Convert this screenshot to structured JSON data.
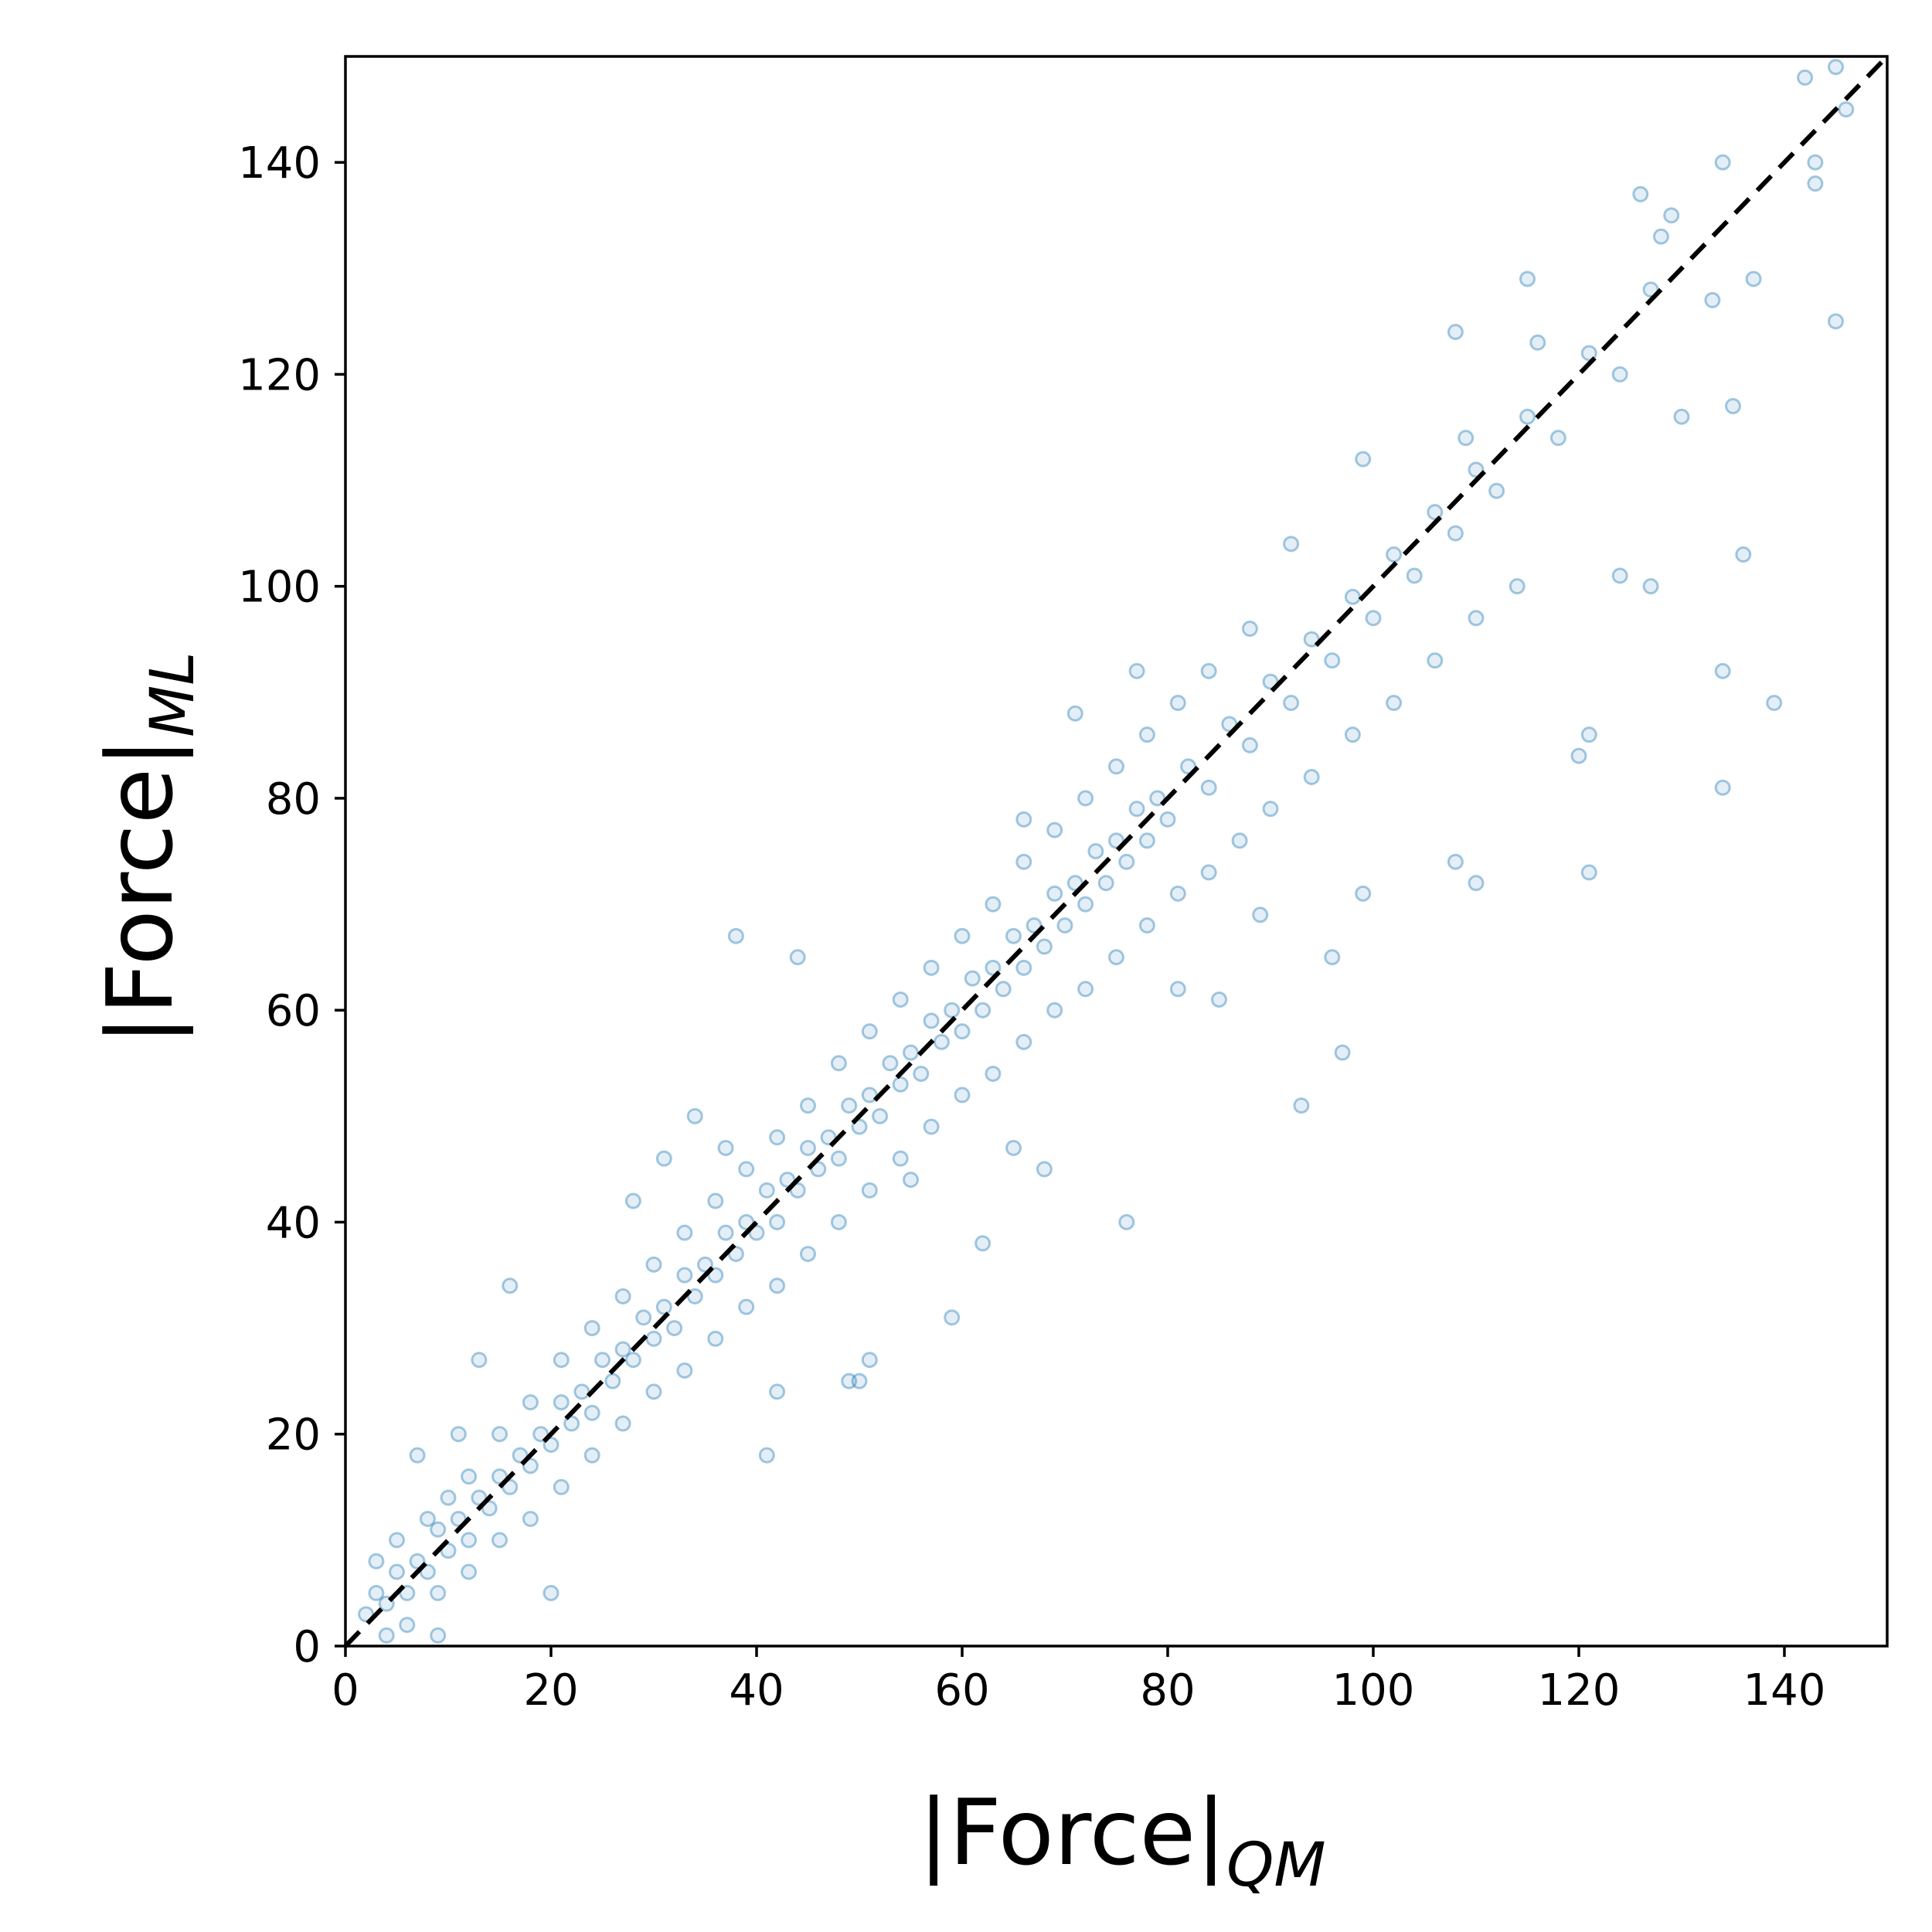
{
  "chart_data": {
    "type": "scatter",
    "title": "",
    "xlabel": {
      "main": "|Force|",
      "subscript": "QM"
    },
    "ylabel": {
      "main": "|Force|",
      "subscript": "ML"
    },
    "xlim": [
      0,
      150
    ],
    "ylim": [
      0,
      150
    ],
    "xticks": [
      0,
      20,
      40,
      60,
      80,
      100,
      120,
      140
    ],
    "yticks": [
      0,
      20,
      40,
      60,
      80,
      100,
      120,
      140
    ],
    "grid": false,
    "legend": "none",
    "marker": {
      "shape": "hollow-circle",
      "color": "#1f77b4",
      "alpha": 0.15
    },
    "reference_line": {
      "style": "dashed",
      "color": "#000000",
      "from": [
        0,
        0
      ],
      "to": [
        150,
        150
      ]
    },
    "series": [
      {
        "points": [
          [
            2,
            3
          ],
          [
            3,
            5
          ],
          [
            4,
            4
          ],
          [
            5,
            7
          ],
          [
            6,
            5
          ],
          [
            7,
            8
          ],
          [
            8,
            7
          ],
          [
            9,
            11
          ],
          [
            10,
            9
          ],
          [
            11,
            12
          ],
          [
            12,
            10
          ],
          [
            13,
            14
          ],
          [
            14,
            13
          ],
          [
            15,
            16
          ],
          [
            16,
            15
          ],
          [
            17,
            18
          ],
          [
            18,
            17
          ],
          [
            19,
            20
          ],
          [
            20,
            19
          ],
          [
            21,
            23
          ],
          [
            22,
            21
          ],
          [
            23,
            24
          ],
          [
            24,
            22
          ],
          [
            25,
            27
          ],
          [
            26,
            25
          ],
          [
            27,
            28
          ],
          [
            28,
            27
          ],
          [
            29,
            31
          ],
          [
            30,
            29
          ],
          [
            31,
            32
          ],
          [
            32,
            30
          ],
          [
            33,
            35
          ],
          [
            34,
            33
          ],
          [
            35,
            36
          ],
          [
            36,
            35
          ],
          [
            37,
            39
          ],
          [
            38,
            37
          ],
          [
            39,
            40
          ],
          [
            40,
            39
          ],
          [
            41,
            43
          ],
          [
            42,
            40
          ],
          [
            43,
            44
          ],
          [
            44,
            43
          ],
          [
            45,
            47
          ],
          [
            46,
            45
          ],
          [
            47,
            48
          ],
          [
            48,
            46
          ],
          [
            49,
            51
          ],
          [
            50,
            49
          ],
          [
            51,
            52
          ],
          [
            52,
            50
          ],
          [
            53,
            55
          ],
          [
            54,
            53
          ],
          [
            55,
            56
          ],
          [
            56,
            54
          ],
          [
            57,
            59
          ],
          [
            58,
            57
          ],
          [
            59,
            60
          ],
          [
            60,
            58
          ],
          [
            61,
            63
          ],
          [
            62,
            60
          ],
          [
            63,
            64
          ],
          [
            64,
            62
          ],
          [
            65,
            67
          ],
          [
            66,
            64
          ],
          [
            67,
            68
          ],
          [
            68,
            66
          ],
          [
            69,
            71
          ],
          [
            70,
            68
          ],
          [
            71,
            72
          ],
          [
            72,
            70
          ],
          [
            73,
            75
          ],
          [
            74,
            72
          ],
          [
            75,
            76
          ],
          [
            76,
            74
          ],
          [
            77,
            79
          ],
          [
            78,
            76
          ],
          [
            79,
            80
          ],
          [
            80,
            78
          ],
          [
            82,
            83
          ],
          [
            84,
            81
          ],
          [
            86,
            87
          ],
          [
            88,
            85
          ],
          [
            90,
            91
          ],
          [
            92,
            89
          ],
          [
            94,
            95
          ],
          [
            96,
            93
          ],
          [
            98,
            99
          ],
          [
            100,
            97
          ],
          [
            102,
            103
          ],
          [
            104,
            101
          ],
          [
            106,
            107
          ],
          [
            108,
            105
          ],
          [
            110,
            111
          ],
          [
            112,
            109
          ],
          [
            115,
            116
          ],
          [
            118,
            114
          ],
          [
            121,
            122
          ],
          [
            124,
            120
          ],
          [
            127,
            128
          ],
          [
            3,
            8
          ],
          [
            5,
            10
          ],
          [
            8,
            12
          ],
          [
            10,
            14
          ],
          [
            12,
            16
          ],
          [
            15,
            20
          ],
          [
            18,
            23
          ],
          [
            21,
            27
          ],
          [
            24,
            30
          ],
          [
            27,
            33
          ],
          [
            30,
            36
          ],
          [
            33,
            39
          ],
          [
            36,
            42
          ],
          [
            39,
            45
          ],
          [
            42,
            48
          ],
          [
            45,
            51
          ],
          [
            48,
            55
          ],
          [
            51,
            58
          ],
          [
            54,
            61
          ],
          [
            57,
            64
          ],
          [
            60,
            67
          ],
          [
            63,
            70
          ],
          [
            66,
            74
          ],
          [
            69,
            77
          ],
          [
            72,
            80
          ],
          [
            75,
            83
          ],
          [
            78,
            86
          ],
          [
            81,
            89
          ],
          [
            84,
            92
          ],
          [
            88,
            96
          ],
          [
            6,
            2
          ],
          [
            9,
            5
          ],
          [
            12,
            7
          ],
          [
            15,
            10
          ],
          [
            18,
            12
          ],
          [
            21,
            15
          ],
          [
            24,
            18
          ],
          [
            27,
            21
          ],
          [
            30,
            24
          ],
          [
            33,
            26
          ],
          [
            36,
            29
          ],
          [
            39,
            32
          ],
          [
            42,
            34
          ],
          [
            45,
            37
          ],
          [
            48,
            40
          ],
          [
            51,
            43
          ],
          [
            54,
            46
          ],
          [
            57,
            49
          ],
          [
            60,
            52
          ],
          [
            63,
            54
          ],
          [
            66,
            57
          ],
          [
            69,
            60
          ],
          [
            72,
            62
          ],
          [
            75,
            65
          ],
          [
            78,
            68
          ],
          [
            81,
            71
          ],
          [
            84,
            73
          ],
          [
            87,
            76
          ],
          [
            90,
            79
          ],
          [
            94,
            82
          ],
          [
            98,
            86
          ],
          [
            102,
            89
          ],
          [
            106,
            93
          ],
          [
            110,
            97
          ],
          [
            114,
            100
          ],
          [
            44,
            65
          ],
          [
            38,
            67
          ],
          [
            76,
            40
          ],
          [
            55,
            44
          ],
          [
            66,
            78
          ],
          [
            93,
            51
          ],
          [
            97,
            56
          ],
          [
            110,
            72
          ],
          [
            121,
            73
          ],
          [
            108,
            74
          ],
          [
            134,
            81
          ],
          [
            139,
            89
          ],
          [
            134,
            92
          ],
          [
            121,
            86
          ],
          [
            120,
            84
          ],
          [
            124,
            101
          ],
          [
            127,
            100
          ],
          [
            136,
            103
          ],
          [
            130,
            116
          ],
          [
            135,
            117
          ],
          [
            145,
            125
          ],
          [
            137,
            129
          ],
          [
            133,
            127
          ],
          [
            143,
            138
          ],
          [
            145,
            149
          ],
          [
            142,
            148
          ],
          [
            146,
            145
          ],
          [
            134,
            140
          ],
          [
            143,
            140
          ],
          [
            129,
            135
          ],
          [
            126,
            137
          ],
          [
            128,
            133
          ],
          [
            115,
            129
          ],
          [
            108,
            124
          ],
          [
            116,
            123
          ],
          [
            28,
            42
          ],
          [
            31,
            46
          ],
          [
            34,
            50
          ],
          [
            37,
            47
          ],
          [
            41,
            18
          ],
          [
            59,
            31
          ],
          [
            51,
            27
          ],
          [
            50,
            25
          ],
          [
            49,
            25
          ],
          [
            68,
            45
          ],
          [
            16,
            34
          ],
          [
            13,
            27
          ],
          [
            11,
            20
          ],
          [
            7,
            18
          ],
          [
            9,
            1
          ],
          [
            4,
            1
          ],
          [
            20,
            5
          ],
          [
            42,
            24
          ],
          [
            65,
            47
          ],
          [
            62,
            38
          ],
          [
            85,
            61
          ],
          [
            81,
            62
          ],
          [
            89,
            69
          ],
          [
            96,
            65
          ],
          [
            99,
            71
          ],
          [
            71,
            88
          ],
          [
            77,
            92
          ],
          [
            92,
            104
          ],
          [
            99,
            112
          ],
          [
            109,
            114
          ]
        ]
      }
    ]
  }
}
